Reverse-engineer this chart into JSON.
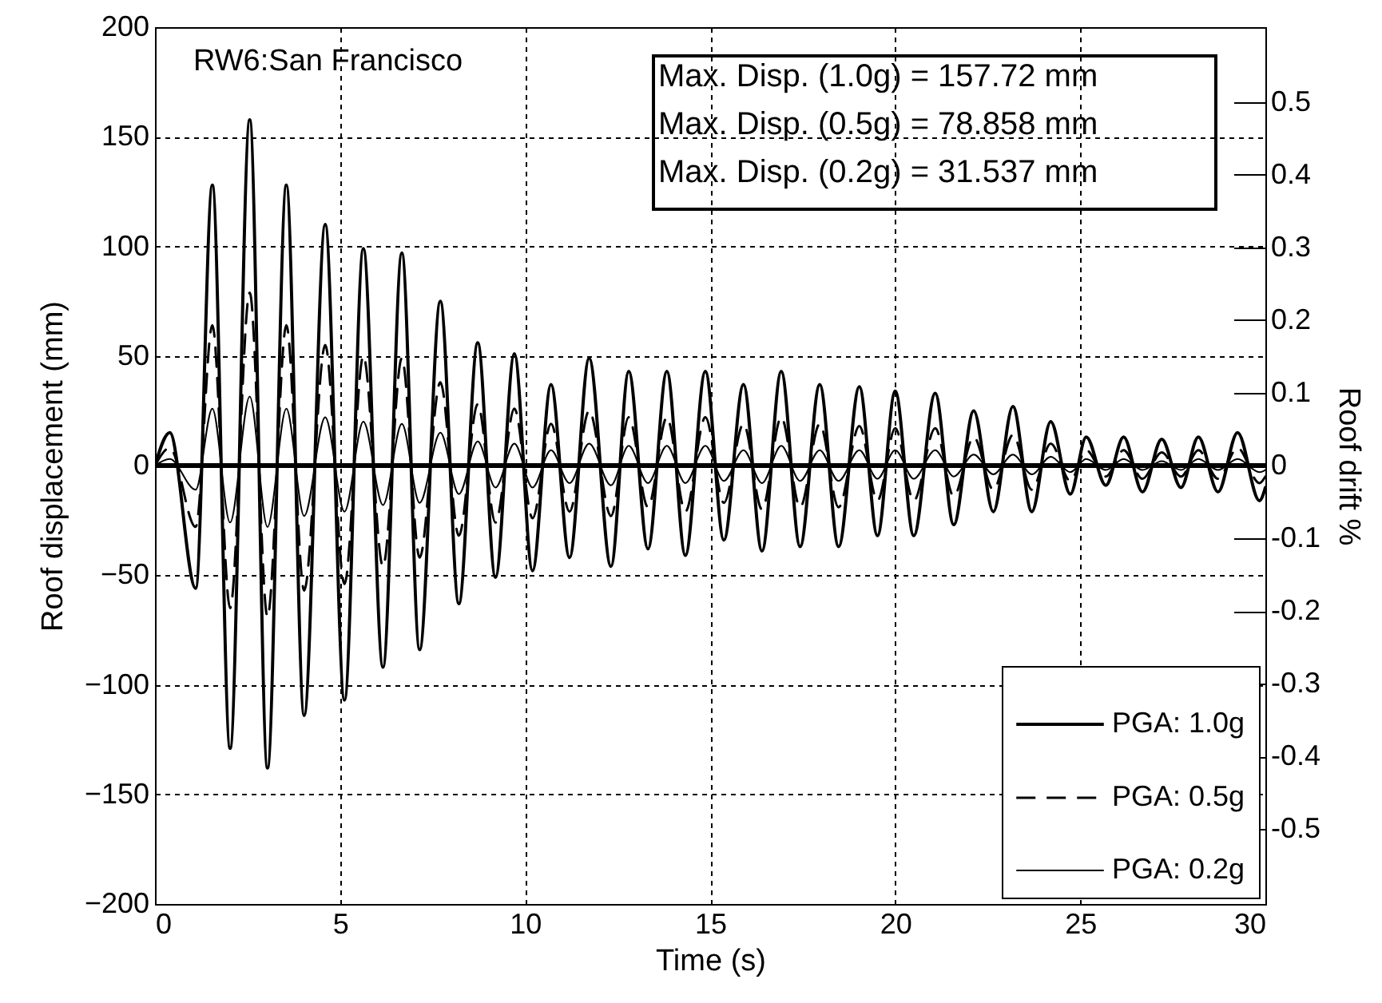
{
  "chart_data": {
    "type": "line",
    "xlabel": "Time (s)",
    "ylabel": "Roof displacement (mm)",
    "y2label": "Roof drift %",
    "x": [
      0,
      0.4,
      1.1,
      1.55,
      2.03,
      2.56,
      3.04,
      3.55,
      4.03,
      4.6,
      5.12,
      5.63,
      6.16,
      6.67,
      7.15,
      7.71,
      8.21,
      8.72,
      9.2,
      9.71,
      10.2,
      10.7,
      11.2,
      11.73,
      12.32,
      12.8,
      13.32,
      13.83,
      14.33,
      14.87,
      15.37,
      15.9,
      16.4,
      16.92,
      17.43,
      17.96,
      18.47,
      19.03,
      19.52,
      20,
      20.5,
      21.08,
      21.58,
      22.12,
      22.65,
      23.18,
      23.69,
      24.2,
      24.73,
      25.16,
      25.69,
      26.17,
      26.68,
      27.2,
      27.72,
      28.19,
      28.72,
      29.25,
      29.84,
      30
    ],
    "series": [
      {
        "name": "PGA: 1.0g",
        "color": "#000000",
        "line_style": "solid",
        "values": [
          0,
          15,
          -56,
          128,
          -129,
          157.7,
          -138,
          128,
          -114,
          110,
          -107,
          99,
          -92,
          97,
          -84,
          75,
          -63,
          56,
          -51,
          51,
          -48,
          37,
          -42,
          49,
          -46,
          43,
          -38,
          43,
          -41,
          43,
          -34,
          37,
          -39,
          43,
          -37,
          37,
          -37,
          36,
          -32,
          34,
          -32,
          33,
          -27,
          25,
          -21,
          27,
          -21,
          20,
          -13,
          13,
          -9,
          13,
          -12,
          12,
          -10,
          13,
          -12,
          15,
          -16,
          -10
        ]
      },
      {
        "name": "PGA: 0.5g",
        "color": "#000000",
        "line_style": "dashed",
        "values": [
          0,
          8,
          -28,
          64,
          -65,
          78.9,
          -69,
          64,
          -57,
          55,
          -54,
          50,
          -46,
          49,
          -42,
          38,
          -32,
          28,
          -26,
          26,
          -24,
          19,
          -21,
          25,
          -23,
          22,
          -19,
          22,
          -21,
          22,
          -17,
          19,
          -20,
          22,
          -19,
          19,
          -19,
          18,
          -16,
          17,
          -16,
          17,
          -14,
          13,
          -11,
          14,
          -11,
          10,
          -7,
          7,
          -5,
          7,
          -6,
          6,
          -5,
          7,
          -6,
          8,
          -8,
          -5
        ]
      },
      {
        "name": "PGA: 0.2g",
        "color": "#000000",
        "line_style": "solid",
        "values": [
          0,
          3,
          -11,
          26,
          -26,
          31.5,
          -28,
          26,
          -23,
          22,
          -21,
          20,
          -18,
          19,
          -17,
          15,
          -13,
          11,
          -10,
          10,
          -10,
          7,
          -8,
          10,
          -9,
          9,
          -8,
          9,
          -8,
          9,
          -7,
          7,
          -8,
          9,
          -7,
          7,
          -7,
          7,
          -6,
          7,
          -6,
          7,
          -5,
          5,
          -4,
          5,
          -4,
          4,
          -3,
          3,
          -2,
          3,
          -2,
          2,
          -2,
          3,
          -2,
          3,
          -3,
          -2
        ]
      }
    ],
    "xlim": [
      0,
      30
    ],
    "xticks": [
      0,
      5,
      10,
      15,
      20,
      25,
      30
    ],
    "ylim": [
      -200,
      200
    ],
    "yticks": [
      -200,
      -150,
      -100,
      -50,
      0,
      50,
      100,
      150,
      200
    ],
    "y2lim": [
      -0.603,
      0.603
    ],
    "y2ticks": [
      -0.5,
      -0.4,
      -0.3,
      -0.2,
      -0.1,
      0,
      0.1,
      0.2,
      0.3,
      0.4,
      0.5
    ],
    "ref_lines": [
      {
        "axis": "y",
        "value": 0,
        "color": "#000000"
      }
    ],
    "annotations": [
      "RW6:San Francisco",
      "Max. Disp. (1.0g) = 157.72 mm",
      "Max. Disp. (0.5g) = 78.858 mm",
      "Max. Disp. (0.2g) = 31.537 mm"
    ],
    "grid": true,
    "legend": "bottom right"
  }
}
